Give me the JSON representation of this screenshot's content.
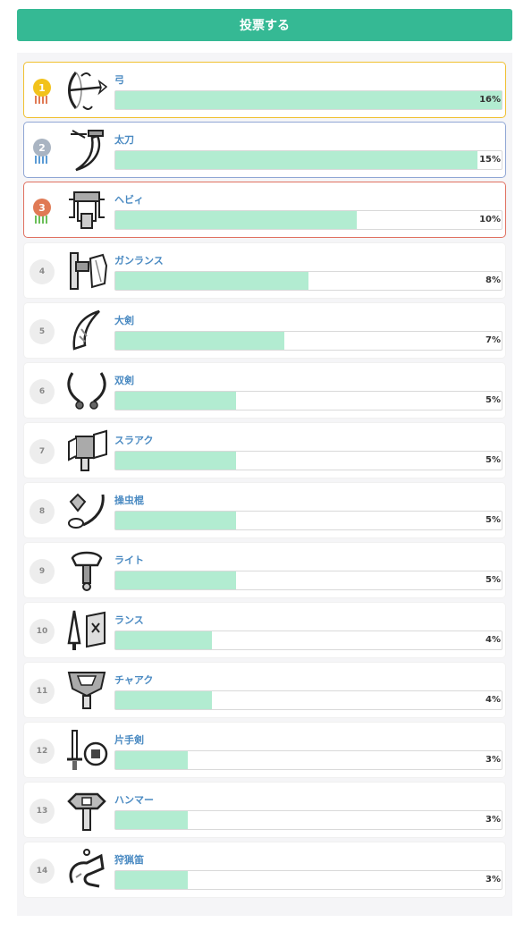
{
  "vote_button": {
    "label": "投票する"
  },
  "ranking": [
    {
      "rank": "1",
      "name": "弓",
      "percent": "16%",
      "value": 16,
      "icon": "bow-icon"
    },
    {
      "rank": "2",
      "name": "太刀",
      "percent": "15%",
      "value": 15,
      "icon": "long-sword-icon"
    },
    {
      "rank": "3",
      "name": "ヘビィ",
      "percent": "10%",
      "value": 10,
      "icon": "heavy-bowgun-icon"
    },
    {
      "rank": "4",
      "name": "ガンランス",
      "percent": "8%",
      "value": 8,
      "icon": "gunlance-icon"
    },
    {
      "rank": "5",
      "name": "大剣",
      "percent": "7%",
      "value": 7,
      "icon": "great-sword-icon"
    },
    {
      "rank": "6",
      "name": "双剣",
      "percent": "5%",
      "value": 5,
      "icon": "dual-blades-icon"
    },
    {
      "rank": "7",
      "name": "スラアク",
      "percent": "5%",
      "value": 5,
      "icon": "switch-axe-icon"
    },
    {
      "rank": "8",
      "name": "操虫棍",
      "percent": "5%",
      "value": 5,
      "icon": "insect-glaive-icon"
    },
    {
      "rank": "9",
      "name": "ライト",
      "percent": "5%",
      "value": 5,
      "icon": "light-bowgun-icon"
    },
    {
      "rank": "10",
      "name": "ランス",
      "percent": "4%",
      "value": 4,
      "icon": "lance-icon"
    },
    {
      "rank": "11",
      "name": "チャアク",
      "percent": "4%",
      "value": 4,
      "icon": "charge-blade-icon"
    },
    {
      "rank": "12",
      "name": "片手剣",
      "percent": "3%",
      "value": 3,
      "icon": "sword-and-shield-icon"
    },
    {
      "rank": "13",
      "name": "ハンマー",
      "percent": "3%",
      "value": 3,
      "icon": "hammer-icon"
    },
    {
      "rank": "14",
      "name": "狩猟笛",
      "percent": "3%",
      "value": 3,
      "icon": "hunting-horn-icon"
    }
  ],
  "colors": {
    "accent": "#35b994",
    "bar_fill": "#b2ecd1",
    "gold": "#f2c21b",
    "silver": "#a9b4c2",
    "bronze": "#e07a55"
  }
}
